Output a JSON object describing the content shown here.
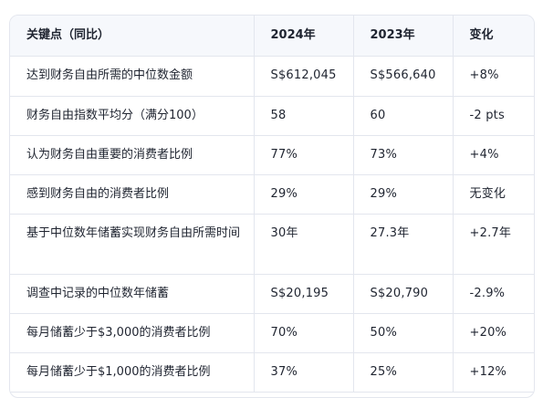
{
  "table": {
    "headers": [
      "关键点（同比）",
      "2024年",
      "2023年",
      "变化"
    ],
    "rows": [
      [
        "达到财务自由所需的中位数金额",
        "S$612,045",
        "S$566,640",
        "+8%"
      ],
      [
        "财务自由指数平均分（满分100）",
        "58",
        "60",
        "-2 pts"
      ],
      [
        "认为财务自由重要的消费者比例",
        "77%",
        "73%",
        "+4%"
      ],
      [
        "感到财务自由的消费者比例",
        "29%",
        "29%",
        "无变化"
      ],
      [
        "基于中位数年储蓄实现财务自由所需时间",
        "30年",
        "27.3年",
        "+2.7年"
      ],
      [
        "调查中记录的中位数年储蓄",
        "S$20,195",
        "S$20,790",
        "-2.9%"
      ],
      [
        "每月储蓄少于$3,000的消费者比例",
        "70%",
        "50%",
        "+20%"
      ],
      [
        "每月储蓄少于$1,000的消费者比例",
        "37%",
        "25%",
        "+12%"
      ]
    ]
  }
}
